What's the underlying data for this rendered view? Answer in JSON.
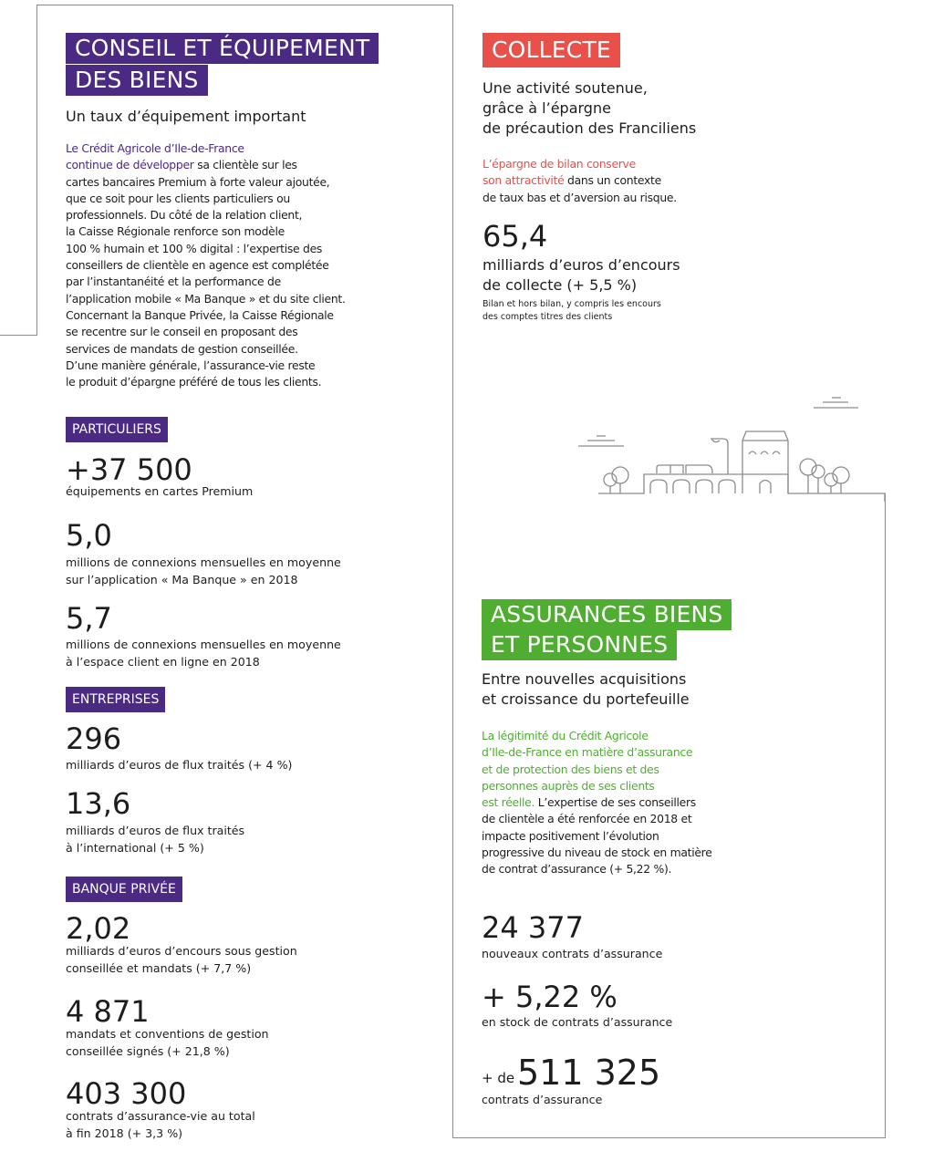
{
  "colors": {
    "purple": "#4b2a83",
    "red": "#e9504a",
    "green": "#4fae32",
    "frame": "#8c8c8c"
  },
  "left": {
    "title_line1": "CONSEIL ET ÉQUIPEMENT",
    "title_line2": "DES BIENS",
    "subtitle": "Un taux d’équipement important",
    "para_highlight": "Le Crédit Agricole d’Ile-de-France\ncontinue de développer",
    "para_rest": " sa clientèle sur les\ncartes bancaires Premium à forte valeur ajoutée,\nque ce soit pour les clients particuliers ou\nprofessionnels. Du côté de la relation client,\nla Caisse Régionale renforce son modèle\n100 % humain et 100 % digital : l’expertise des\nconseillers de clientèle en agence est complétée\npar l’instantanéité et la performance de\nl’application mobile « Ma Banque » et du site client.\nConcernant la Banque Privée, la Caisse Régionale\nse recentre sur le conseil en proposant des\nservices de mandats de gestion conseillée.\nD’une manière générale, l’assurance-vie reste\nle produit d’épargne préféré de tous les clients.",
    "badges": [
      "PARTICULIERS",
      "ENTREPRISES",
      "BANQUE PRIVÉE"
    ],
    "stats": [
      {
        "value": "+37 500",
        "label": "équipements en cartes Premium"
      },
      {
        "value": "5,0",
        "label": "millions de connexions mensuelles en moyenne\nsur l’application « Ma Banque » en 2018"
      },
      {
        "value": "5,7",
        "label": "millions de connexions mensuelles en moyenne\nà l’espace client en ligne en 2018"
      },
      {
        "value": "296",
        "label": "milliards d’euros de flux traités (+ 4 %)"
      },
      {
        "value": "13,6",
        "label": "milliards d’euros de flux traités\nà l’international (+ 5 %)"
      },
      {
        "value": "2,02",
        "label": "milliards d’euros d’encours sous gestion\nconseillée et mandats (+ 7,7 %)"
      },
      {
        "value": "4 871",
        "label": "mandats et conventions de gestion\nconseillée signés (+ 21,8 %)"
      },
      {
        "value": "403 300",
        "label": "contrats d’assurance-vie au total\nà fin 2018 (+ 3,3 %)"
      }
    ]
  },
  "collecte": {
    "title": "COLLECTE",
    "subtitle": "Une activité soutenue,\ngrâce à l’épargne\nde précaution des Franciliens",
    "para_highlight": "L’épargne de bilan conserve\nson attractivité",
    "para_rest": " dans un contexte\nde taux bas et d’aversion au risque.",
    "stat_value": "65,4",
    "stat_label": "milliards d’euros d’encours\nde collecte (+ 5,5 %)",
    "note": "Bilan et hors bilan, y compris les encours\ndes comptes titres des clients"
  },
  "assurances": {
    "title_line1": "ASSURANCES BIENS",
    "title_line2": "ET PERSONNES",
    "subtitle": "Entre nouvelles acquisitions\net croissance du portefeuille",
    "para_highlight": "La légitimité du Crédit Agricole\nd’Ile-de-France en matière d’assurance\net de protection des biens et des\npersonnes auprès de ses clients\nest réelle.",
    "para_rest": " L’expertise de ses conseillers\nde clientèle a été renforcée en 2018 et\nimpacte positivement l’évolution\nprogressive du niveau de stock en matière\nde contrat d’assurance (+ 5,22 %).",
    "stats": [
      {
        "value": "24 377",
        "label": "nouveaux contrats d’assurance"
      },
      {
        "value": "+ 5,22 %",
        "label": "en stock de contrats d’assurance"
      },
      {
        "prefix": "+ de",
        "value": "511 325",
        "label": "contrats d’assurance"
      }
    ]
  },
  "illustration": {
    "icon": "cityscape-icon"
  }
}
